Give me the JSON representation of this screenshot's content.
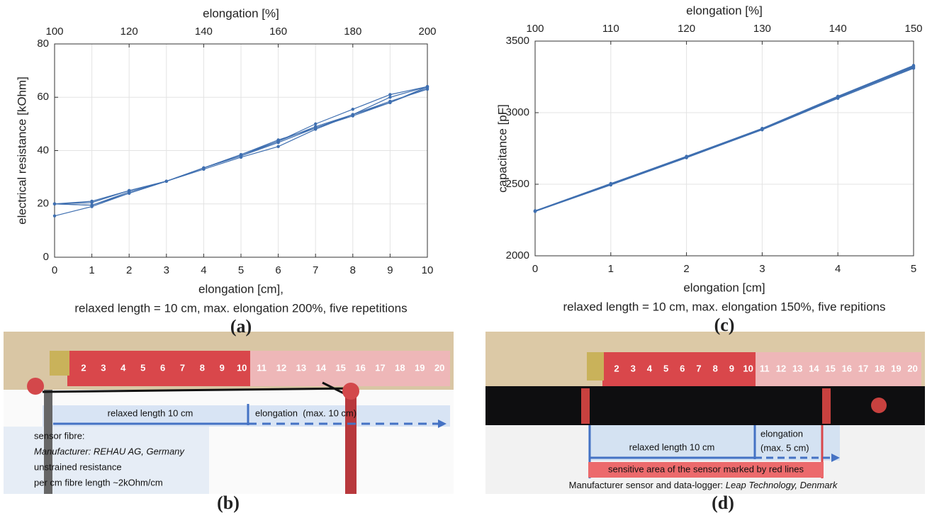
{
  "chart_data": [
    {
      "type": "line",
      "panel_label": "(a)",
      "x2label": "elongation [%]",
      "ylabel": "electrical resistance [kOhm]",
      "xlabel": "elongation [cm],",
      "note": "relaxed length = 10 cm, max. elongation 200%, five repetitions",
      "x": [
        0,
        1,
        2,
        3,
        4,
        5,
        6,
        7,
        8,
        9,
        10
      ],
      "xlim": [
        0,
        10
      ],
      "xticks": [
        0,
        1,
        2,
        3,
        4,
        5,
        6,
        7,
        8,
        9,
        10
      ],
      "x2lim": [
        100,
        200
      ],
      "x2ticks": [
        100,
        120,
        140,
        160,
        180,
        200
      ],
      "ylim": [
        0,
        80
      ],
      "yticks": [
        0,
        20,
        40,
        60,
        80
      ],
      "grid": true,
      "series": [
        {
          "color": "#3f6fb0",
          "values": [
            20,
            20.5,
            25,
            28.5,
            33.5,
            38.5,
            43.5,
            50,
            55.5,
            61,
            64
          ]
        },
        {
          "color": "#3f6fb0",
          "values": [
            20,
            19.5,
            24,
            28.5,
            33.5,
            38,
            43.5,
            49,
            53.5,
            58,
            63.5
          ]
        },
        {
          "color": "#3f6fb0",
          "values": [
            15.5,
            19,
            24,
            28.5,
            33,
            37.5,
            41.5,
            48,
            53.5,
            58.5,
            63
          ]
        },
        {
          "color": "#3f6fb0",
          "values": [
            20,
            21,
            25,
            28.5,
            33.5,
            38.5,
            44,
            48.5,
            53,
            58,
            64
          ]
        },
        {
          "color": "#3f6fb0",
          "values": [
            20,
            19.5,
            24.5,
            28.5,
            33.5,
            38,
            43,
            48.5,
            53.5,
            60,
            64
          ]
        }
      ]
    },
    {
      "type": "line",
      "panel_label": "(c)",
      "x2label": "elongation [%]",
      "ylabel": "capacitance [pF]",
      "xlabel": "elongation [cm]",
      "note": "relaxed length = 10 cm, max. elongation 150%, five repitions",
      "x": [
        0,
        1,
        2,
        3,
        4,
        5
      ],
      "xlim": [
        0,
        5
      ],
      "xticks": [
        0,
        1,
        2,
        3,
        4,
        5
      ],
      "x2lim": [
        100,
        150
      ],
      "x2ticks": [
        100,
        110,
        120,
        130,
        140,
        150
      ],
      "ylim": [
        2000,
        3500
      ],
      "yticks": [
        2000,
        2500,
        3000,
        3500
      ],
      "grid": true,
      "series": [
        {
          "color": "#3f6fb0",
          "values": [
            2310,
            2500,
            2690,
            2885,
            3105,
            3320
          ]
        },
        {
          "color": "#3f6fb0",
          "values": [
            2315,
            2505,
            2695,
            2890,
            3115,
            3330
          ]
        },
        {
          "color": "#3f6fb0",
          "values": [
            2310,
            2495,
            2685,
            2880,
            3100,
            3310
          ]
        },
        {
          "color": "#3f6fb0",
          "values": [
            2312,
            2502,
            2692,
            2887,
            3110,
            3325
          ]
        },
        {
          "color": "#3f6fb0",
          "values": [
            2313,
            2498,
            2688,
            2884,
            3108,
            3315
          ]
        }
      ]
    }
  ],
  "photos": {
    "b": {
      "panel_label": "(b)",
      "ruler": [
        2,
        3,
        4,
        5,
        6,
        7,
        8,
        9,
        10,
        11,
        12,
        13,
        14,
        15,
        16,
        17,
        18,
        19,
        20
      ],
      "relaxed": "relaxed length 10 cm",
      "elongation": "elongation  (max. 10 cm)",
      "notes": [
        "sensor fibre:",
        "Manufacturer: REHAU AG, Germany",
        "unstrained resistance",
        "per cm fibre length ~2kOhm/cm"
      ]
    },
    "d": {
      "panel_label": "(d)",
      "ruler": [
        2,
        3,
        4,
        5,
        6,
        7,
        8,
        9,
        10,
        11,
        12,
        13,
        14,
        15,
        16,
        17,
        18,
        19,
        20
      ],
      "relaxed": "relaxed length 10 cm",
      "elongation": [
        "elongation",
        "(max. 5 cm)"
      ],
      "sensitive": "sensitive area of the sensor marked by red lines",
      "manufacturer": "Manufacturer sensor and data-logger: ",
      "manufacturer_name": "Leap Technology, Denmark"
    }
  }
}
